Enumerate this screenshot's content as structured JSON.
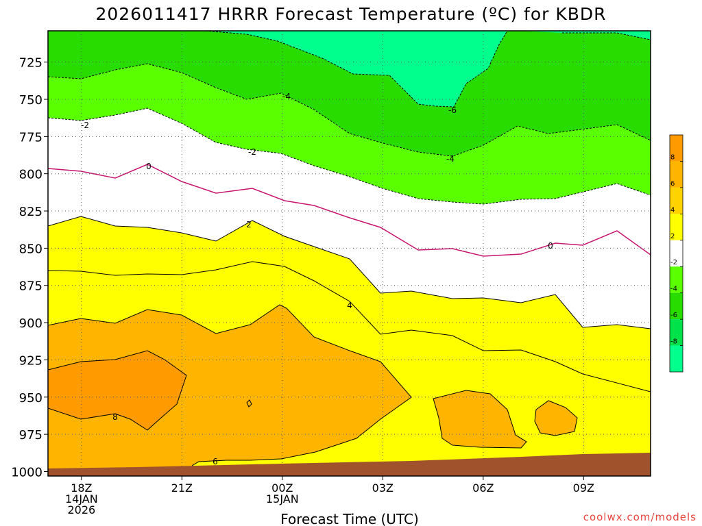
{
  "chart_data": {
    "type": "contour",
    "title": "2026011417 HRRR Forecast Temperature (ºC) for KBDR",
    "xlabel": "Forecast Time (UTC)",
    "ylabel": "",
    "x_ticks": [
      {
        "lines": [
          "18Z",
          "14JAN",
          "2026"
        ],
        "hour": 18
      },
      {
        "lines": [
          "21Z"
        ],
        "hour": 21
      },
      {
        "lines": [
          "00Z",
          "15JAN"
        ],
        "hour": 24
      },
      {
        "lines": [
          "03Z"
        ],
        "hour": 27
      },
      {
        "lines": [
          "06Z"
        ],
        "hour": 30
      },
      {
        "lines": [
          "09Z"
        ],
        "hour": 33
      }
    ],
    "xlim": [
      17,
      35
    ],
    "y_ticks": [
      "725",
      "750",
      "775",
      "800",
      "825",
      "850",
      "875",
      "900",
      "925",
      "950",
      "975",
      "1000"
    ],
    "ylim_hpa": [
      1003,
      704
    ],
    "grid": true,
    "contour_levels": [
      -8,
      -6,
      -4,
      -2,
      0,
      2,
      4,
      6,
      8
    ],
    "contour_labels": [
      "-6",
      "-4",
      "-4",
      "-2",
      "-2",
      "0",
      "0",
      "2",
      "4",
      "6",
      "8",
      "6"
    ],
    "colorbar": {
      "labels": [
        "8",
        "6",
        "4",
        "2",
        "-2",
        "-4",
        "-6",
        "-8"
      ],
      "colors": [
        "#ff9a00",
        "#ffb400",
        "#ffd200",
        "#ffff00",
        "#ffffff",
        "#5aff00",
        "#28dc00",
        "#00e24a",
        "#00ff8c"
      ]
    },
    "colors": {
      "ground": "#a0522d",
      "freezing_line": "#c8146e",
      "band_gt8": "#ff9a00",
      "band_6_8": "#ffb400",
      "band_4_6": "#ffd200",
      "band_2_4": "#ffff00",
      "band_m2_2": "#ffffff",
      "band_m4_m2": "#5aff00",
      "band_m6_m4": "#28dc00",
      "band_lt_m6": "#00ff8c"
    }
  },
  "credit": "coolwx.com/models"
}
